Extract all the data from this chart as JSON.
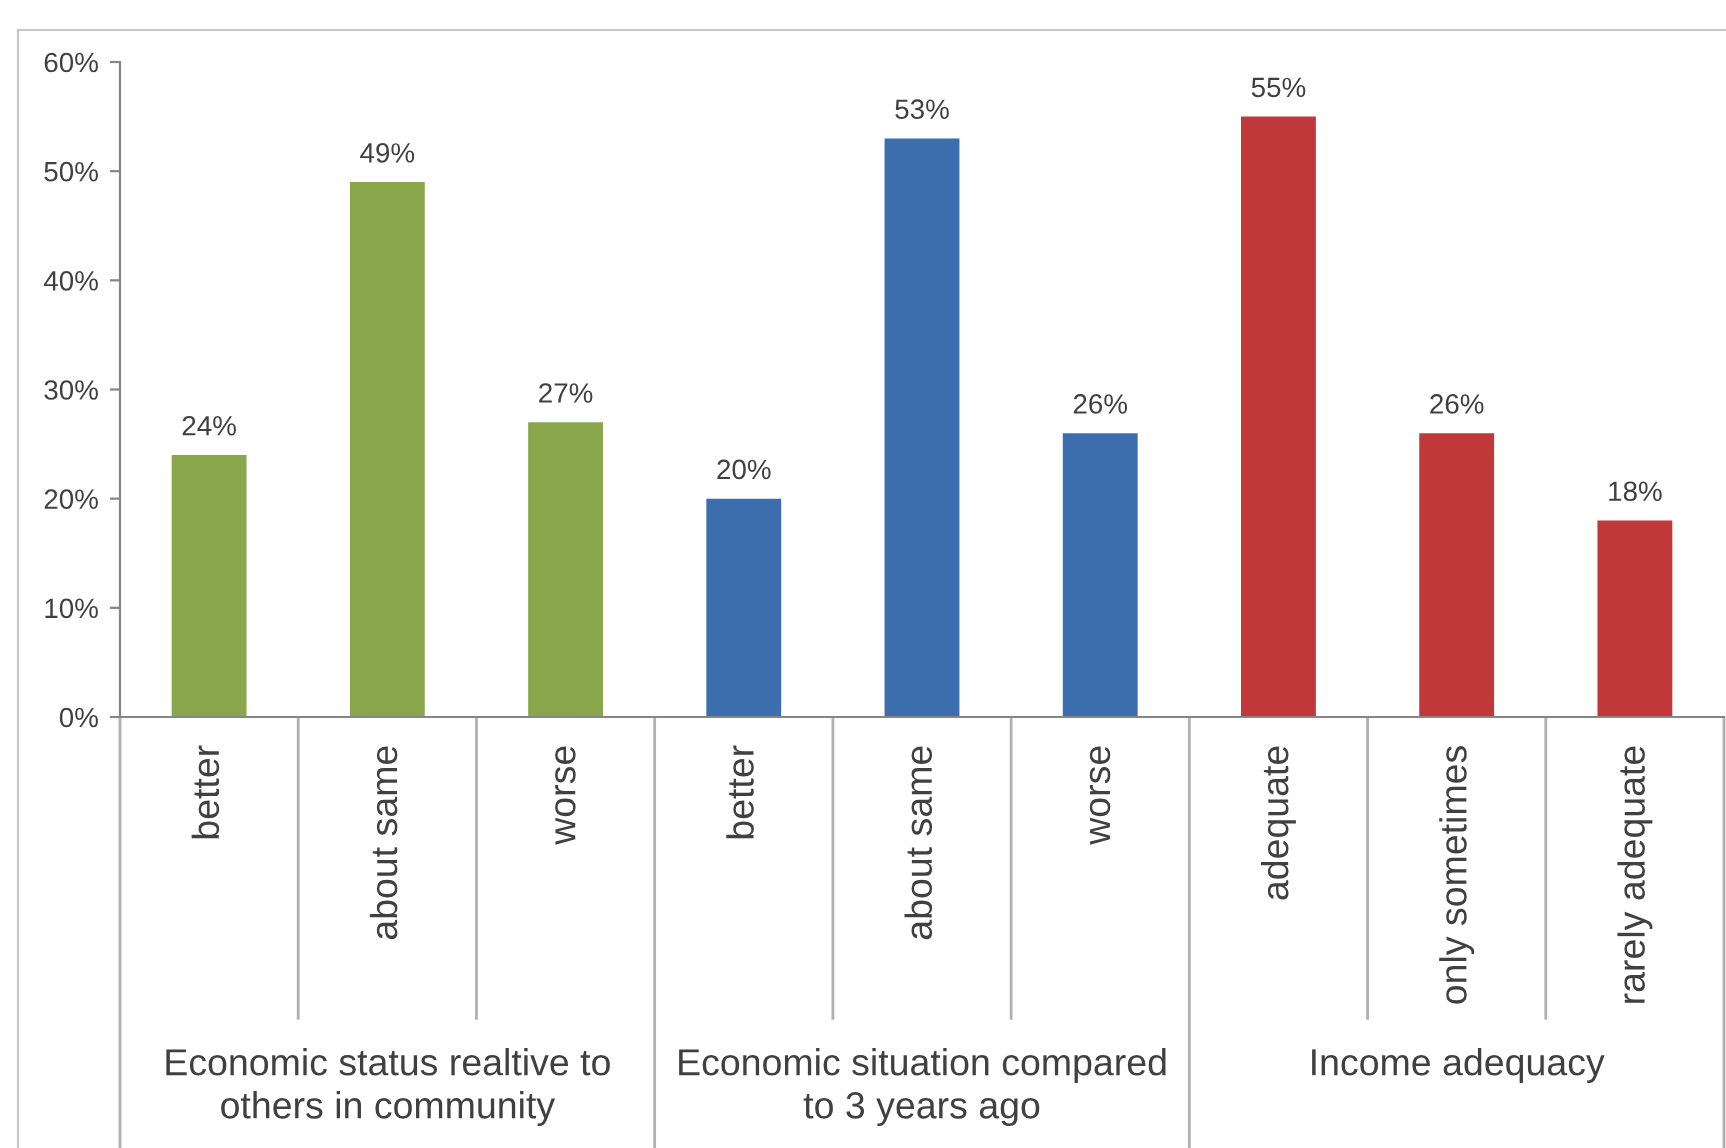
{
  "chart_data": {
    "type": "bar",
    "categories": [
      "better",
      "about same",
      "worse",
      "better",
      "about same",
      "worse",
      "adequate",
      "only sometimes",
      "rarely adequate"
    ],
    "series": [
      {
        "color": "#89a74a",
        "values": [
          24,
          49,
          27,
          null,
          null,
          null,
          null,
          null,
          null
        ],
        "value_labels": [
          "24%",
          "49%",
          "27%",
          null,
          null,
          null,
          null,
          null,
          null
        ]
      },
      {
        "color": "#3c6eae",
        "values": [
          null,
          null,
          null,
          20,
          53,
          26,
          null,
          null,
          null
        ],
        "value_labels": [
          null,
          null,
          null,
          "20%",
          "53%",
          "26%",
          null,
          null,
          null
        ]
      },
      {
        "color": "#c0383a",
        "values": [
          null,
          null,
          null,
          null,
          null,
          null,
          55,
          26,
          18
        ],
        "value_labels": [
          null,
          null,
          null,
          null,
          null,
          null,
          "55%",
          "26%",
          "18%"
        ]
      }
    ],
    "annotations": [
      "Economic status realtive to others in community",
      "Economic situation compared to 3 years ago",
      "Income adequacy"
    ],
    "ylim": [
      0,
      60
    ],
    "yticks": [
      {
        "value": 0,
        "label": "0%"
      },
      {
        "value": 10,
        "label": "10%"
      },
      {
        "value": 20,
        "label": "20%"
      },
      {
        "value": 30,
        "label": "30%"
      },
      {
        "value": 40,
        "label": "40%"
      },
      {
        "value": 50,
        "label": "50%"
      },
      {
        "value": 60,
        "label": "60%"
      }
    ]
  }
}
